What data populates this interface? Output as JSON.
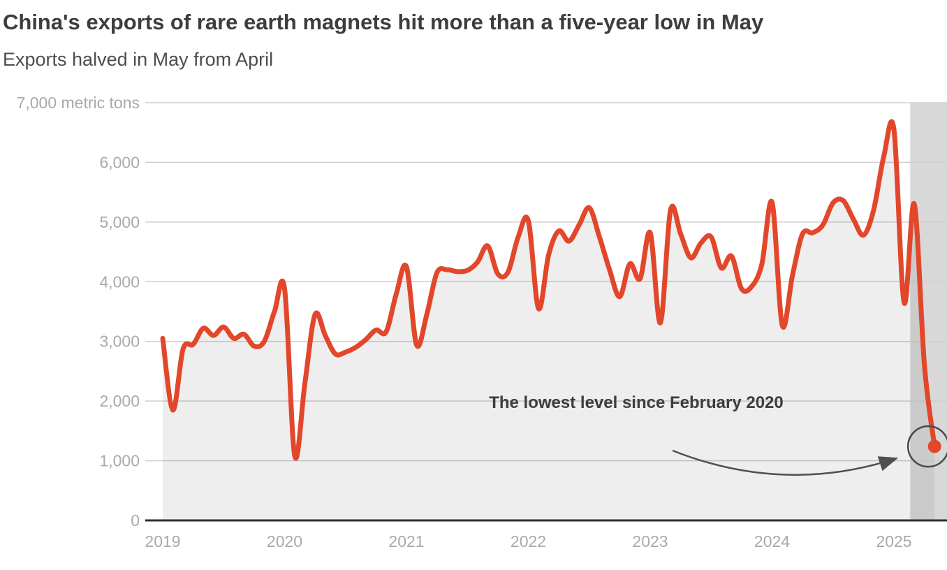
{
  "header": {
    "title": "China's exports of rare earth magnets hit more than a five-year low in May",
    "subtitle": "Exports halved in May from April"
  },
  "chart_data": {
    "type": "line",
    "title": "China's exports of rare earth magnets hit more than a five-year low in May",
    "subtitle": "Exports halved in May from April",
    "unit": "metric tons",
    "frequency": "monthly",
    "start": "2019-01",
    "end": "2025-05",
    "values": [
      3050,
      1850,
      2870,
      2950,
      3220,
      3100,
      3240,
      3050,
      3120,
      2920,
      3000,
      3500,
      3880,
      1080,
      2300,
      3450,
      3100,
      2790,
      2820,
      2900,
      3030,
      3190,
      3160,
      3800,
      4250,
      2940,
      3450,
      4150,
      4200,
      4170,
      4190,
      4330,
      4600,
      4130,
      4160,
      4750,
      5020,
      3550,
      4450,
      4850,
      4680,
      4950,
      5240,
      4750,
      4200,
      3750,
      4300,
      4050,
      4820,
      3310,
      5200,
      4800,
      4400,
      4650,
      4750,
      4230,
      4430,
      3880,
      3920,
      4300,
      5330,
      3270,
      4100,
      4800,
      4820,
      4950,
      5320,
      5360,
      5050,
      4780,
      5200,
      6100,
      6550,
      3650,
      5300,
      2600,
      1240
    ],
    "ylim": [
      0,
      7000
    ],
    "y_ticks": [
      0,
      1000,
      2000,
      3000,
      4000,
      5000,
      6000,
      7000
    ],
    "y_tick_labels": [
      "0",
      "1,000",
      "2,000",
      "3,000",
      "4,000",
      "5,000",
      "6,000",
      "7,000 metric tons"
    ],
    "x_tick_labels": [
      "2019",
      "2020",
      "2021",
      "2022",
      "2023",
      "2024",
      "2025"
    ],
    "grid": "horizontal",
    "legend": "none",
    "annotation": {
      "text": "The lowest level since February 2020",
      "target_date": "2025-05",
      "target_value": 1240
    },
    "highlight_band": {
      "from_month_offset": 73.6,
      "to": "right edge of plot"
    },
    "colors": {
      "line": "#e2472b",
      "area_fill": "rgba(90,90,90,0.10)",
      "highlight_band": "#d8d8d8",
      "gridline": "#cfcfcf",
      "axis_line": "#2f2f2f",
      "tick_label": "#a9a9a9",
      "title": "#3d3d3d",
      "subtitle": "#4d4d4d",
      "annotation": "#3d3d3d",
      "arrow": "#4f4f4f"
    }
  }
}
